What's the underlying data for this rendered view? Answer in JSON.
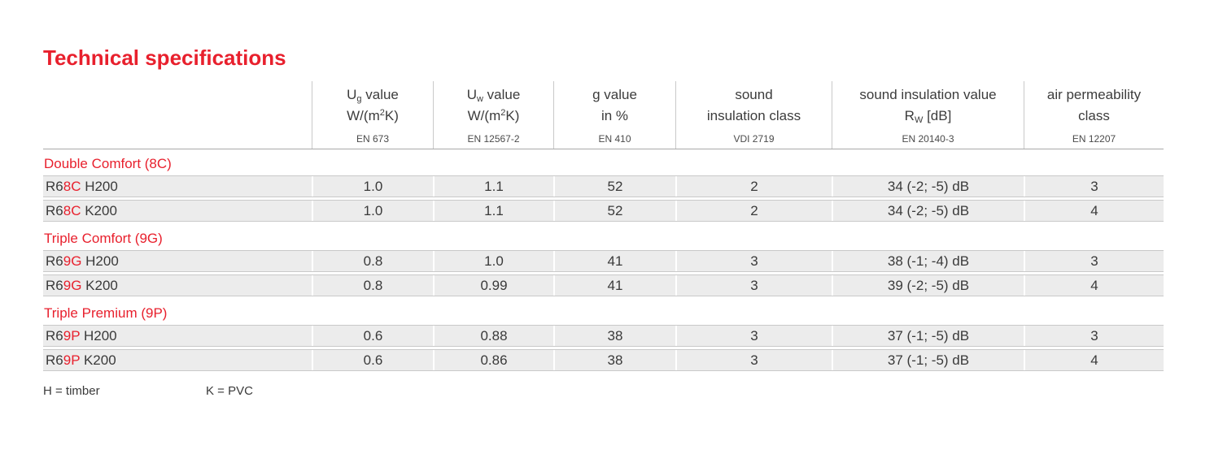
{
  "heading": "Technical specifications",
  "colors": {
    "accent_red": "#e8202d",
    "row_background": "#ececec",
    "row_border": "#c9c9c9",
    "header_rule": "#a9a9a9",
    "text": "#3a3a3a",
    "page_background": "#ffffff"
  },
  "table": {
    "columns": [
      {
        "line1": [
          {
            "t": "U"
          },
          {
            "t": "g",
            "s": "sub"
          },
          {
            "t": " value"
          }
        ],
        "line2": [
          {
            "t": "W/(m"
          },
          {
            "t": "2",
            "s": "sup"
          },
          {
            "t": "K)"
          }
        ],
        "standard": "EN 673"
      },
      {
        "line1": [
          {
            "t": "U"
          },
          {
            "t": "w",
            "s": "sub"
          },
          {
            "t": " value"
          }
        ],
        "line2": [
          {
            "t": "W/(m"
          },
          {
            "t": "2",
            "s": "sup"
          },
          {
            "t": "K)"
          }
        ],
        "standard": "EN 12567-2"
      },
      {
        "line1": [
          {
            "t": "g value"
          }
        ],
        "line2": [
          {
            "t": "in %"
          }
        ],
        "standard": "EN 410"
      },
      {
        "line1": [
          {
            "t": "sound"
          }
        ],
        "line2": [
          {
            "t": "insulation class"
          }
        ],
        "standard": "VDI 2719"
      },
      {
        "line1": [
          {
            "t": "sound insulation value"
          }
        ],
        "line2": [
          {
            "t": "R"
          },
          {
            "t": "W",
            "s": "sub"
          },
          {
            "t": " [dB]"
          }
        ],
        "standard": "EN 20140-3"
      },
      {
        "line1": [
          {
            "t": "air permeability"
          }
        ],
        "line2": [
          {
            "t": "class"
          }
        ],
        "standard": "EN 12207"
      }
    ],
    "sections": [
      {
        "header": "Double Comfort (8C)",
        "rows": [
          {
            "label": [
              {
                "t": "R6"
              },
              {
                "t": "8C",
                "s": "red"
              },
              {
                "t": " H200"
              }
            ],
            "values": [
              "1.0",
              "1.1",
              "52",
              "2",
              "34 (-2; -5) dB",
              "3"
            ]
          },
          {
            "label": [
              {
                "t": "R6"
              },
              {
                "t": "8C",
                "s": "red"
              },
              {
                "t": " K200"
              }
            ],
            "values": [
              "1.0",
              "1.1",
              "52",
              "2",
              "34 (-2; -5) dB",
              "4"
            ]
          }
        ]
      },
      {
        "header": "Triple Comfort (9G)",
        "rows": [
          {
            "label": [
              {
                "t": "R6"
              },
              {
                "t": "9G",
                "s": "red"
              },
              {
                "t": " H200"
              }
            ],
            "values": [
              "0.8",
              "1.0",
              "41",
              "3",
              "38 (-1; -4) dB",
              "3"
            ]
          },
          {
            "label": [
              {
                "t": "R6"
              },
              {
                "t": "9G",
                "s": "red"
              },
              {
                "t": " K200"
              }
            ],
            "values": [
              "0.8",
              "0.99",
              "41",
              "3",
              "39 (-2; -5) dB",
              "4"
            ]
          }
        ]
      },
      {
        "header": "Triple Premium (9P)",
        "rows": [
          {
            "label": [
              {
                "t": "R6"
              },
              {
                "t": "9P",
                "s": "red"
              },
              {
                "t": " H200"
              }
            ],
            "values": [
              "0.6",
              "0.88",
              "38",
              "3",
              "37 (-1; -5) dB",
              "3"
            ]
          },
          {
            "label": [
              {
                "t": "R6"
              },
              {
                "t": "9P",
                "s": "red"
              },
              {
                "t": " K200"
              }
            ],
            "values": [
              "0.6",
              "0.86",
              "38",
              "3",
              "37 (-1; -5) dB",
              "4"
            ]
          }
        ]
      }
    ]
  },
  "footer": {
    "legend_h": "H = timber",
    "legend_k": "K = PVC"
  }
}
